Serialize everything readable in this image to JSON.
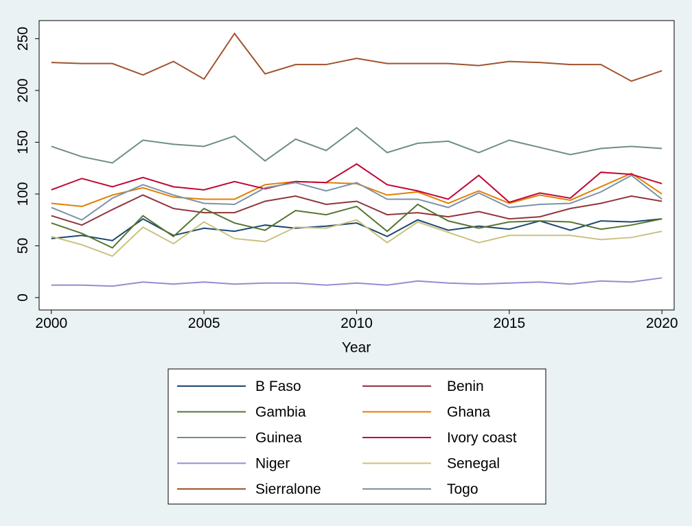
{
  "chart_data": {
    "type": "line",
    "x": [
      2000,
      2001,
      2002,
      2003,
      2004,
      2005,
      2006,
      2007,
      2008,
      2009,
      2010,
      2011,
      2012,
      2013,
      2014,
      2015,
      2016,
      2017,
      2018,
      2019,
      2020
    ],
    "x_label": "Year",
    "xlim": [
      1999.6,
      2020.4
    ],
    "xticks": [
      2000,
      2005,
      2010,
      2015,
      2020
    ],
    "ylim": [
      -12,
      267.5
    ],
    "yticks": [
      0,
      50,
      100,
      150,
      200,
      250
    ],
    "legend": "bottom",
    "series": [
      {
        "name": "B Faso",
        "color": "#1a476f",
        "values": [
          57,
          60,
          55,
          76,
          60,
          67,
          64,
          70,
          67,
          69,
          72,
          59,
          75,
          65,
          69,
          66,
          74,
          65,
          74,
          73,
          76
        ]
      },
      {
        "name": "Benin",
        "color": "#90353b",
        "values": [
          79,
          70,
          85,
          99,
          86,
          82,
          82,
          93,
          98,
          90,
          93,
          80,
          82,
          78,
          83,
          76,
          78,
          86,
          91,
          98,
          93
        ]
      },
      {
        "name": "Gambia",
        "color": "#55752f",
        "values": [
          72,
          62,
          48,
          79,
          59,
          86,
          72,
          65,
          84,
          80,
          88,
          64,
          90,
          74,
          67,
          73,
          74,
          73,
          66,
          70,
          76
        ]
      },
      {
        "name": "Ghana",
        "color": "#e37e00",
        "values": [
          91,
          88,
          99,
          106,
          97,
          95,
          95,
          109,
          112,
          111,
          110,
          99,
          102,
          91,
          103,
          91,
          99,
          94,
          107,
          120,
          100
        ]
      },
      {
        "name": "Guinea",
        "color": "#6e8e84",
        "values": [
          146,
          136,
          130,
          152,
          148,
          146,
          156,
          132,
          153,
          142,
          164,
          140,
          149,
          151,
          140,
          152,
          145,
          138,
          144,
          146,
          144
        ]
      },
      {
        "name": "Ivory coast",
        "color": "#c10534",
        "values": [
          104,
          115,
          107,
          116,
          107,
          104,
          112,
          105,
          112,
          111,
          129,
          109,
          103,
          95,
          118,
          92,
          101,
          96,
          121,
          119,
          110
        ]
      },
      {
        "name": "Niger",
        "color": "#938dd2",
        "values": [
          12,
          12,
          11,
          15,
          13,
          15,
          13,
          14,
          14,
          12,
          14,
          12,
          16,
          14,
          13,
          14,
          15,
          13,
          16,
          15,
          19
        ]
      },
      {
        "name": "Senegal",
        "color": "#cac27e",
        "values": [
          59,
          51,
          40,
          68,
          52,
          73,
          57,
          54,
          68,
          67,
          75,
          53,
          73,
          63,
          53,
          60,
          60,
          60,
          56,
          58,
          64
        ]
      },
      {
        "name": "Sierralone",
        "color": "#a0522d",
        "values": [
          227,
          226,
          226,
          215,
          228,
          211,
          255,
          216,
          225,
          225,
          231,
          226,
          226,
          226,
          224,
          228,
          227,
          225,
          225,
          209,
          219
        ]
      },
      {
        "name": "Togo",
        "color": "#7b92a8",
        "values": [
          87,
          75,
          96,
          109,
          99,
          91,
          90,
          106,
          111,
          103,
          111,
          95,
          95,
          87,
          101,
          87,
          90,
          91,
          102,
          118,
          95
        ]
      }
    ]
  }
}
